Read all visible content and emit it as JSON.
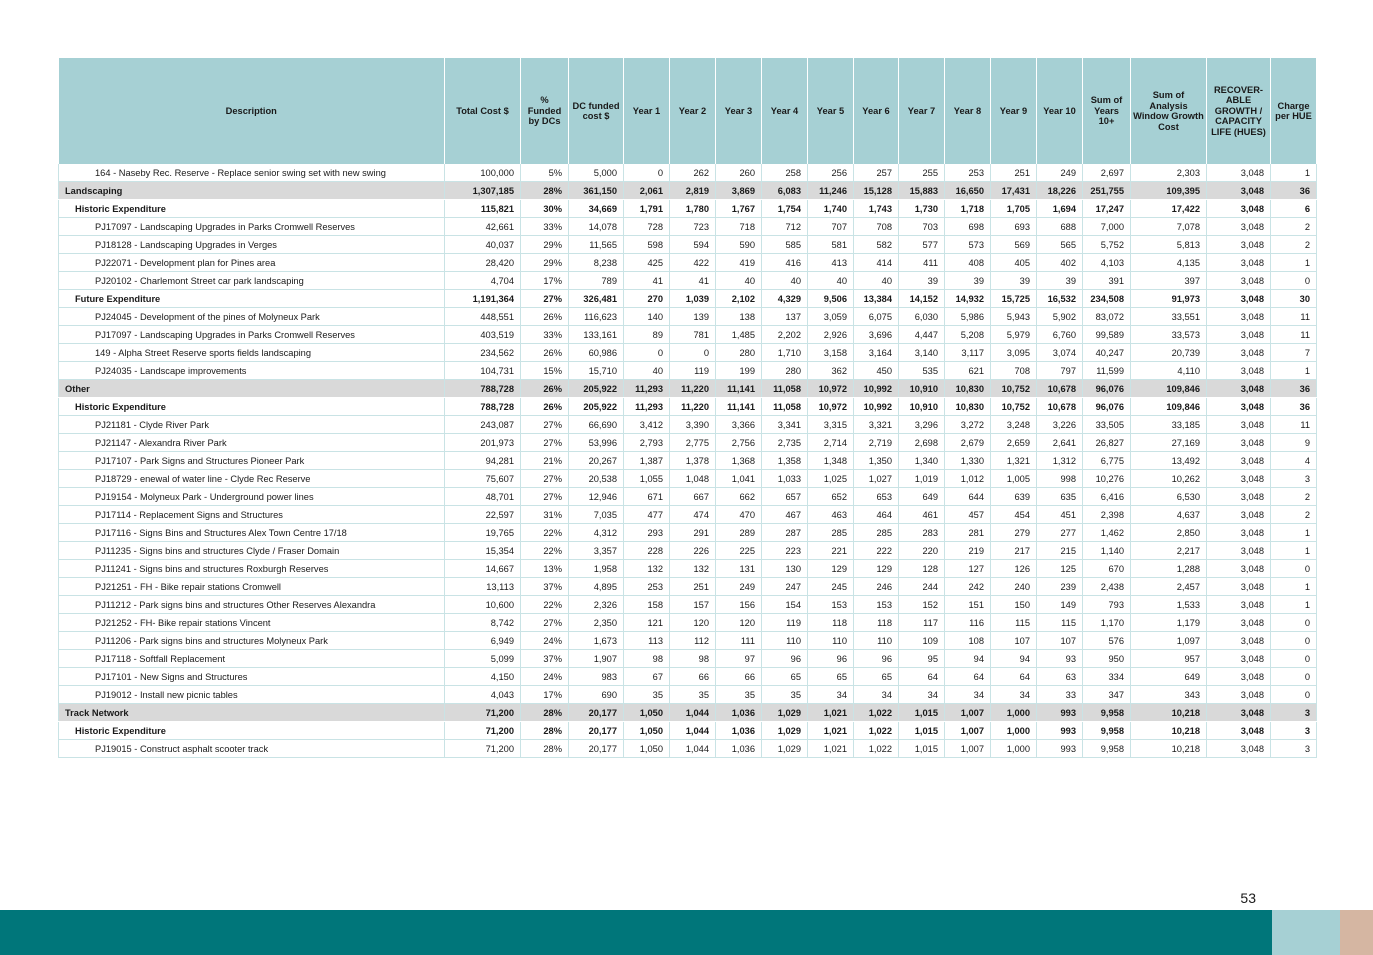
{
  "headers": [
    "Description",
    "Total Cost $",
    "% Funded by DCs",
    "DC funded cost $",
    "Year 1",
    "Year 2",
    "Year 3",
    "Year 4",
    "Year 5",
    "Year 6",
    "Year 7",
    "Year 8",
    "Year 9",
    "Year 10",
    "Sum of Years 10+",
    "Sum of Analysis Window Growth Cost",
    "RECOVER-ABLE GROWTH / CAPACITY LIFE (HUES)",
    "Charge per HUE"
  ],
  "rows": [
    {
      "level": "item",
      "cells": [
        "164 - Naseby Rec. Reserve - Replace senior swing set with new swing",
        "100,000",
        "5%",
        "5,000",
        "0",
        "262",
        "260",
        "258",
        "256",
        "257",
        "255",
        "253",
        "251",
        "249",
        "2,697",
        "2,303",
        "3,048",
        "1"
      ]
    },
    {
      "level": "cat",
      "cells": [
        "Landscaping",
        "1,307,185",
        "28%",
        "361,150",
        "2,061",
        "2,819",
        "3,869",
        "6,083",
        "11,246",
        "15,128",
        "15,883",
        "16,650",
        "17,431",
        "18,226",
        "251,755",
        "109,395",
        "3,048",
        "36"
      ]
    },
    {
      "level": "sub",
      "cells": [
        "Historic Expenditure",
        "115,821",
        "30%",
        "34,669",
        "1,791",
        "1,780",
        "1,767",
        "1,754",
        "1,740",
        "1,743",
        "1,730",
        "1,718",
        "1,705",
        "1,694",
        "17,247",
        "17,422",
        "3,048",
        "6"
      ]
    },
    {
      "level": "item",
      "cells": [
        "PJ17097 - Landscaping Upgrades in Parks Cromwell Reserves",
        "42,661",
        "33%",
        "14,078",
        "728",
        "723",
        "718",
        "712",
        "707",
        "708",
        "703",
        "698",
        "693",
        "688",
        "7,000",
        "7,078",
        "3,048",
        "2"
      ]
    },
    {
      "level": "item",
      "cells": [
        "PJ18128 - Landscaping Upgrades in Verges",
        "40,037",
        "29%",
        "11,565",
        "598",
        "594",
        "590",
        "585",
        "581",
        "582",
        "577",
        "573",
        "569",
        "565",
        "5,752",
        "5,813",
        "3,048",
        "2"
      ]
    },
    {
      "level": "item",
      "cells": [
        "PJ22071 - Development plan for Pines area",
        "28,420",
        "29%",
        "8,238",
        "425",
        "422",
        "419",
        "416",
        "413",
        "414",
        "411",
        "408",
        "405",
        "402",
        "4,103",
        "4,135",
        "3,048",
        "1"
      ]
    },
    {
      "level": "item",
      "cells": [
        "PJ20102 - Charlemont Street car park landscaping",
        "4,704",
        "17%",
        "789",
        "41",
        "41",
        "40",
        "40",
        "40",
        "40",
        "39",
        "39",
        "39",
        "39",
        "391",
        "397",
        "3,048",
        "0"
      ]
    },
    {
      "level": "sub",
      "cells": [
        "Future Expenditure",
        "1,191,364",
        "27%",
        "326,481",
        "270",
        "1,039",
        "2,102",
        "4,329",
        "9,506",
        "13,384",
        "14,152",
        "14,932",
        "15,725",
        "16,532",
        "234,508",
        "91,973",
        "3,048",
        "30"
      ]
    },
    {
      "level": "item",
      "cells": [
        "PJ24045 - Development of the pines of Molyneux Park",
        "448,551",
        "26%",
        "116,623",
        "140",
        "139",
        "138",
        "137",
        "3,059",
        "6,075",
        "6,030",
        "5,986",
        "5,943",
        "5,902",
        "83,072",
        "33,551",
        "3,048",
        "11"
      ]
    },
    {
      "level": "item",
      "cells": [
        "PJ17097 - Landscaping Upgrades in Parks Cromwell Reserves",
        "403,519",
        "33%",
        "133,161",
        "89",
        "781",
        "1,485",
        "2,202",
        "2,926",
        "3,696",
        "4,447",
        "5,208",
        "5,979",
        "6,760",
        "99,589",
        "33,573",
        "3,048",
        "11"
      ]
    },
    {
      "level": "item",
      "cells": [
        "149 - Alpha Street Reserve sports fields landscaping",
        "234,562",
        "26%",
        "60,986",
        "0",
        "0",
        "280",
        "1,710",
        "3,158",
        "3,164",
        "3,140",
        "3,117",
        "3,095",
        "3,074",
        "40,247",
        "20,739",
        "3,048",
        "7"
      ]
    },
    {
      "level": "item",
      "cells": [
        "PJ24035 - Landscape improvements",
        "104,731",
        "15%",
        "15,710",
        "40",
        "119",
        "199",
        "280",
        "362",
        "450",
        "535",
        "621",
        "708",
        "797",
        "11,599",
        "4,110",
        "3,048",
        "1"
      ]
    },
    {
      "level": "cat",
      "cells": [
        "Other",
        "788,728",
        "26%",
        "205,922",
        "11,293",
        "11,220",
        "11,141",
        "11,058",
        "10,972",
        "10,992",
        "10,910",
        "10,830",
        "10,752",
        "10,678",
        "96,076",
        "109,846",
        "3,048",
        "36"
      ]
    },
    {
      "level": "sub",
      "cells": [
        "Historic Expenditure",
        "788,728",
        "26%",
        "205,922",
        "11,293",
        "11,220",
        "11,141",
        "11,058",
        "10,972",
        "10,992",
        "10,910",
        "10,830",
        "10,752",
        "10,678",
        "96,076",
        "109,846",
        "3,048",
        "36"
      ]
    },
    {
      "level": "item",
      "cells": [
        "PJ21181 - Clyde River Park",
        "243,087",
        "27%",
        "66,690",
        "3,412",
        "3,390",
        "3,366",
        "3,341",
        "3,315",
        "3,321",
        "3,296",
        "3,272",
        "3,248",
        "3,226",
        "33,505",
        "33,185",
        "3,048",
        "11"
      ]
    },
    {
      "level": "item",
      "cells": [
        "PJ21147 - Alexandra River Park",
        "201,973",
        "27%",
        "53,996",
        "2,793",
        "2,775",
        "2,756",
        "2,735",
        "2,714",
        "2,719",
        "2,698",
        "2,679",
        "2,659",
        "2,641",
        "26,827",
        "27,169",
        "3,048",
        "9"
      ]
    },
    {
      "level": "item",
      "cells": [
        "PJ17107 - Park Signs and Structures Pioneer Park",
        "94,281",
        "21%",
        "20,267",
        "1,387",
        "1,378",
        "1,368",
        "1,358",
        "1,348",
        "1,350",
        "1,340",
        "1,330",
        "1,321",
        "1,312",
        "6,775",
        "13,492",
        "3,048",
        "4"
      ]
    },
    {
      "level": "item",
      "cells": [
        "PJ18729 - enewal of water line - Clyde Rec Reserve",
        "75,607",
        "27%",
        "20,538",
        "1,055",
        "1,048",
        "1,041",
        "1,033",
        "1,025",
        "1,027",
        "1,019",
        "1,012",
        "1,005",
        "998",
        "10,276",
        "10,262",
        "3,048",
        "3"
      ]
    },
    {
      "level": "item",
      "cells": [
        "PJ19154 - Molyneux Park - Underground power lines",
        "48,701",
        "27%",
        "12,946",
        "671",
        "667",
        "662",
        "657",
        "652",
        "653",
        "649",
        "644",
        "639",
        "635",
        "6,416",
        "6,530",
        "3,048",
        "2"
      ]
    },
    {
      "level": "item",
      "cells": [
        "PJ17114 - Replacement Signs and Structures",
        "22,597",
        "31%",
        "7,035",
        "477",
        "474",
        "470",
        "467",
        "463",
        "464",
        "461",
        "457",
        "454",
        "451",
        "2,398",
        "4,637",
        "3,048",
        "2"
      ]
    },
    {
      "level": "item",
      "cells": [
        "PJ17116 - Signs Bins and Structures Alex Town Centre 17/18",
        "19,765",
        "22%",
        "4,312",
        "293",
        "291",
        "289",
        "287",
        "285",
        "285",
        "283",
        "281",
        "279",
        "277",
        "1,462",
        "2,850",
        "3,048",
        "1"
      ]
    },
    {
      "level": "item",
      "cells": [
        "PJ11235 - Signs bins and structures Clyde / Fraser Domain",
        "15,354",
        "22%",
        "3,357",
        "228",
        "226",
        "225",
        "223",
        "221",
        "222",
        "220",
        "219",
        "217",
        "215",
        "1,140",
        "2,217",
        "3,048",
        "1"
      ]
    },
    {
      "level": "item",
      "cells": [
        "PJ11241 - Signs bins and structures Roxburgh Reserves",
        "14,667",
        "13%",
        "1,958",
        "132",
        "132",
        "131",
        "130",
        "129",
        "129",
        "128",
        "127",
        "126",
        "125",
        "670",
        "1,288",
        "3,048",
        "0"
      ]
    },
    {
      "level": "item",
      "cells": [
        "PJ21251 - FH - Bike repair stations Cromwell",
        "13,113",
        "37%",
        "4,895",
        "253",
        "251",
        "249",
        "247",
        "245",
        "246",
        "244",
        "242",
        "240",
        "239",
        "2,438",
        "2,457",
        "3,048",
        "1"
      ]
    },
    {
      "level": "item",
      "cells": [
        "PJ11212 - Park signs bins and structures Other Reserves Alexandra",
        "10,600",
        "22%",
        "2,326",
        "158",
        "157",
        "156",
        "154",
        "153",
        "153",
        "152",
        "151",
        "150",
        "149",
        "793",
        "1,533",
        "3,048",
        "1"
      ]
    },
    {
      "level": "item",
      "cells": [
        "PJ21252 - FH- Bike repair stations Vincent",
        "8,742",
        "27%",
        "2,350",
        "121",
        "120",
        "120",
        "119",
        "118",
        "118",
        "117",
        "116",
        "115",
        "115",
        "1,170",
        "1,179",
        "3,048",
        "0"
      ]
    },
    {
      "level": "item",
      "cells": [
        "PJ11206 - Park signs bins and structures Molyneux Park",
        "6,949",
        "24%",
        "1,673",
        "113",
        "112",
        "111",
        "110",
        "110",
        "110",
        "109",
        "108",
        "107",
        "107",
        "576",
        "1,097",
        "3,048",
        "0"
      ]
    },
    {
      "level": "item",
      "cells": [
        "PJ17118 - Softfall Replacement",
        "5,099",
        "37%",
        "1,907",
        "98",
        "98",
        "97",
        "96",
        "96",
        "96",
        "95",
        "94",
        "94",
        "93",
        "950",
        "957",
        "3,048",
        "0"
      ]
    },
    {
      "level": "item",
      "cells": [
        "PJ17101 - New Signs and Structures",
        "4,150",
        "24%",
        "983",
        "67",
        "66",
        "66",
        "65",
        "65",
        "65",
        "64",
        "64",
        "64",
        "63",
        "334",
        "649",
        "3,048",
        "0"
      ]
    },
    {
      "level": "item",
      "cells": [
        "PJ19012 - Install new picnic tables",
        "4,043",
        "17%",
        "690",
        "35",
        "35",
        "35",
        "35",
        "34",
        "34",
        "34",
        "34",
        "34",
        "33",
        "347",
        "343",
        "3,048",
        "0"
      ]
    },
    {
      "level": "cat",
      "cells": [
        "Track Network",
        "71,200",
        "28%",
        "20,177",
        "1,050",
        "1,044",
        "1,036",
        "1,029",
        "1,021",
        "1,022",
        "1,015",
        "1,007",
        "1,000",
        "993",
        "9,958",
        "10,218",
        "3,048",
        "3"
      ]
    },
    {
      "level": "sub",
      "cells": [
        "Historic Expenditure",
        "71,200",
        "28%",
        "20,177",
        "1,050",
        "1,044",
        "1,036",
        "1,029",
        "1,021",
        "1,022",
        "1,015",
        "1,007",
        "1,000",
        "993",
        "9,958",
        "10,218",
        "3,048",
        "3"
      ]
    },
    {
      "level": "item",
      "cells": [
        "PJ19015 - Construct asphalt scooter track",
        "71,200",
        "28%",
        "20,177",
        "1,050",
        "1,044",
        "1,036",
        "1,029",
        "1,021",
        "1,022",
        "1,015",
        "1,007",
        "1,000",
        "993",
        "9,958",
        "10,218",
        "3,048",
        "3"
      ]
    }
  ],
  "page_number": "53",
  "colors": {
    "header_bg": "#a6d0d4",
    "category_bg": "#d9d9d9",
    "footer_teal": "#00767a",
    "footer_light": "#a6d0d4",
    "footer_tan": "#d5b6a2"
  }
}
